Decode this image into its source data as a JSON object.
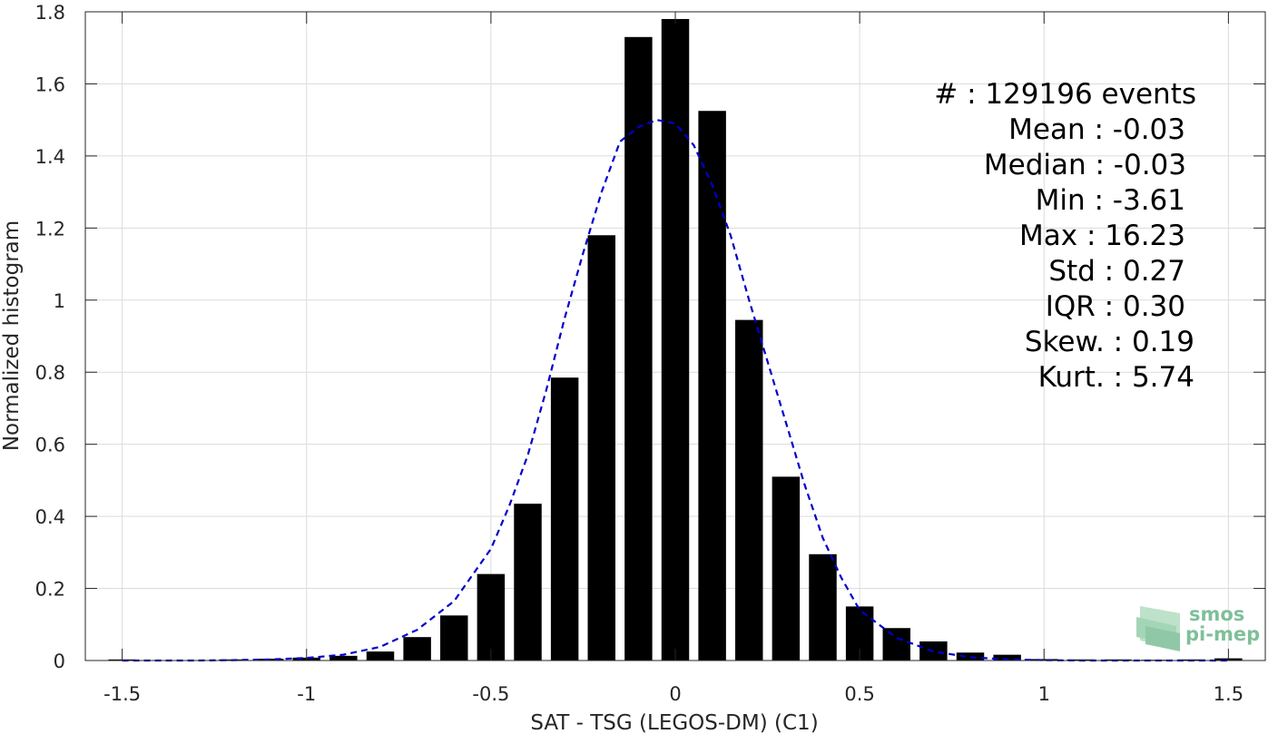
{
  "chart_data": {
    "type": "bar",
    "xlabel": "SAT - TSG (LEGOS-DM) (C1)",
    "ylabel": "Normalized histogram",
    "xlim": [
      -1.6,
      1.6
    ],
    "ylim": [
      0,
      1.8
    ],
    "x_ticks": [
      -1.5,
      -1,
      -0.5,
      0,
      0.5,
      1,
      1.5
    ],
    "x_tick_labels": [
      "-1.5",
      "-1",
      "-0.5",
      "0",
      "0.5",
      "1",
      "1.5"
    ],
    "y_ticks": [
      0,
      0.2,
      0.4,
      0.6,
      0.8,
      1,
      1.2,
      1.4,
      1.6,
      1.8
    ],
    "y_tick_labels": [
      "0",
      "0.2",
      "0.4",
      "0.6",
      "0.8",
      "1",
      "1.2",
      "1.4",
      "1.6",
      "1.8"
    ],
    "grid": true,
    "bar_width": 0.075,
    "bars": {
      "x": [
        -1.5,
        -1.4,
        -1.3,
        -1.2,
        -1.1,
        -1.0,
        -0.9,
        -0.8,
        -0.7,
        -0.6,
        -0.5,
        -0.4,
        -0.3,
        -0.2,
        -0.1,
        0.0,
        0.1,
        0.2,
        0.3,
        0.4,
        0.5,
        0.6,
        0.7,
        0.8,
        0.9,
        1.0,
        1.1,
        1.2,
        1.3,
        1.4,
        1.5
      ],
      "values": [
        0.003,
        0.001,
        0.001,
        0.003,
        0.005,
        0.008,
        0.013,
        0.025,
        0.065,
        0.125,
        0.24,
        0.435,
        0.785,
        1.18,
        1.73,
        1.78,
        1.525,
        0.945,
        0.51,
        0.295,
        0.15,
        0.09,
        0.053,
        0.022,
        0.016,
        0.004,
        0.003,
        0.003,
        0.002,
        0.003,
        0.006
      ],
      "color": "#000000"
    },
    "fit_curve": {
      "style": "dashed",
      "color": "#0000cc",
      "x": [
        -1.5,
        -1.4,
        -1.3,
        -1.2,
        -1.1,
        -1.0,
        -0.9,
        -0.8,
        -0.7,
        -0.6,
        -0.5,
        -0.45,
        -0.4,
        -0.35,
        -0.3,
        -0.25,
        -0.2,
        -0.15,
        -0.1,
        -0.05,
        0.0,
        0.05,
        0.1,
        0.15,
        0.2,
        0.25,
        0.3,
        0.35,
        0.4,
        0.45,
        0.5,
        0.6,
        0.7,
        0.8,
        0.9,
        1.0,
        1.1,
        1.2,
        1.3,
        1.4,
        1.5
      ],
      "y": [
        0.0,
        0.0,
        0.0,
        0.001,
        0.003,
        0.007,
        0.016,
        0.038,
        0.085,
        0.165,
        0.31,
        0.43,
        0.57,
        0.75,
        0.95,
        1.13,
        1.3,
        1.44,
        1.48,
        1.5,
        1.49,
        1.43,
        1.32,
        1.18,
        1.0,
        0.83,
        0.66,
        0.49,
        0.34,
        0.23,
        0.14,
        0.063,
        0.025,
        0.009,
        0.003,
        0.001,
        0.0,
        0.0,
        0.0,
        0.0,
        0.0
      ]
    }
  },
  "stats": [
    {
      "label": "#",
      "sep": ":",
      "value": "129196 events"
    },
    {
      "label": "Mean",
      "sep": ":",
      "value": "-0.03"
    },
    {
      "label": "Median",
      "sep": ":",
      "value": "-0.03"
    },
    {
      "label": "Min",
      "sep": ":",
      "value": "-3.61"
    },
    {
      "label": "Max",
      "sep": ":",
      "value": "16.23"
    },
    {
      "label": "Std",
      "sep": ":",
      "value": "0.27"
    },
    {
      "label": "IQR",
      "sep": ":",
      "value": "0.30"
    },
    {
      "label": "Skew.",
      "sep": ":",
      "value": "0.19"
    },
    {
      "label": "Kurt.",
      "sep": ":",
      "value": "5.74"
    }
  ],
  "stats_lines": [
    "#  : 129196 events",
    "Mean : -0.03",
    "Median : -0.03",
    "Min : -3.61",
    "Max : 16.23",
    "Std : 0.27",
    "IQR : 0.30",
    "Skew. : 0.19",
    "Kurt. : 5.74"
  ],
  "logo": {
    "line1": "smos",
    "line2": "pi-mep",
    "color": "#7fbf9a"
  }
}
